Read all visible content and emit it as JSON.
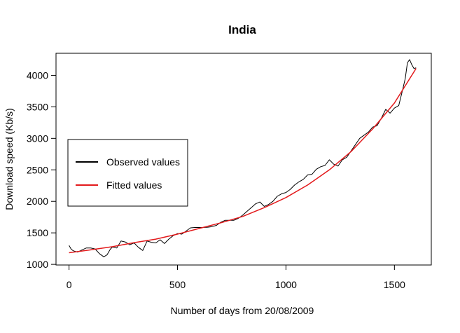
{
  "chart_data": {
    "type": "line",
    "title": "India",
    "xlabel": "Number of days from 20/08/2009",
    "ylabel": "Download speed (Kb/s)",
    "xlim": [
      -60,
      1670
    ],
    "ylim": [
      990,
      4350
    ],
    "xticks": [
      0,
      500,
      1000,
      1500
    ],
    "yticks": [
      1000,
      1500,
      2000,
      2500,
      3000,
      3500,
      4000
    ],
    "grid": false,
    "legend_position": "left",
    "series": [
      {
        "name": "Observed values",
        "color": "#000000",
        "x": [
          0,
          10,
          20,
          40,
          60,
          80,
          100,
          120,
          140,
          160,
          175,
          190,
          200,
          220,
          240,
          260,
          280,
          300,
          320,
          340,
          360,
          380,
          400,
          420,
          440,
          460,
          480,
          500,
          520,
          540,
          560,
          580,
          600,
          620,
          640,
          660,
          680,
          700,
          720,
          740,
          760,
          780,
          800,
          820,
          840,
          860,
          880,
          900,
          920,
          940,
          960,
          980,
          1000,
          1020,
          1040,
          1060,
          1080,
          1100,
          1120,
          1140,
          1160,
          1180,
          1200,
          1220,
          1240,
          1260,
          1280,
          1300,
          1320,
          1340,
          1360,
          1380,
          1400,
          1420,
          1440,
          1460,
          1480,
          1500,
          1520,
          1540,
          1550,
          1560,
          1570,
          1580,
          1590,
          1600
        ],
        "y": [
          1300,
          1240,
          1215,
          1195,
          1230,
          1260,
          1260,
          1245,
          1170,
          1120,
          1150,
          1240,
          1275,
          1260,
          1370,
          1355,
          1310,
          1340,
          1270,
          1220,
          1370,
          1350,
          1340,
          1390,
          1330,
          1400,
          1455,
          1490,
          1480,
          1530,
          1580,
          1585,
          1585,
          1585,
          1590,
          1600,
          1620,
          1670,
          1700,
          1700,
          1700,
          1730,
          1780,
          1840,
          1900,
          1960,
          1990,
          1920,
          1950,
          2000,
          2080,
          2120,
          2140,
          2190,
          2260,
          2310,
          2350,
          2420,
          2430,
          2510,
          2550,
          2570,
          2660,
          2590,
          2560,
          2660,
          2700,
          2800,
          2900,
          3000,
          3050,
          3100,
          3180,
          3200,
          3320,
          3460,
          3400,
          3480,
          3520,
          3800,
          3950,
          4200,
          4250,
          4170,
          4110,
          4120
        ]
      },
      {
        "name": "Fitted values",
        "color": "#e31a1c",
        "x": [
          0,
          100,
          200,
          300,
          400,
          500,
          600,
          700,
          800,
          900,
          1000,
          1100,
          1200,
          1300,
          1400,
          1500,
          1600
        ],
        "y": [
          1185,
          1230,
          1280,
          1345,
          1400,
          1480,
          1570,
          1660,
          1760,
          1900,
          2060,
          2260,
          2500,
          2790,
          3150,
          3560,
          4110
        ]
      }
    ]
  }
}
